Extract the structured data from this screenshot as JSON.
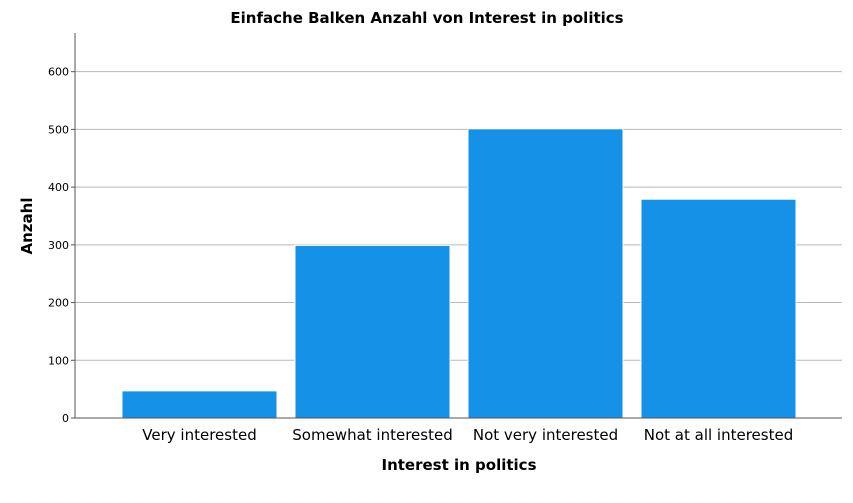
{
  "chart_data": {
    "type": "bar",
    "title": "Einfache Balken Anzahl von Interest in politics",
    "xlabel": "Interest in politics",
    "ylabel": "Anzahl",
    "categories": [
      "Very interested",
      "Somewhat interested",
      "Not very interested",
      "Not at all interested"
    ],
    "values": [
      47,
      299,
      501,
      379
    ],
    "ylim": [
      0,
      667
    ],
    "yticks": [
      0,
      100,
      200,
      300,
      400,
      500,
      600
    ],
    "grid": true,
    "bar_color": "#1591e8"
  }
}
